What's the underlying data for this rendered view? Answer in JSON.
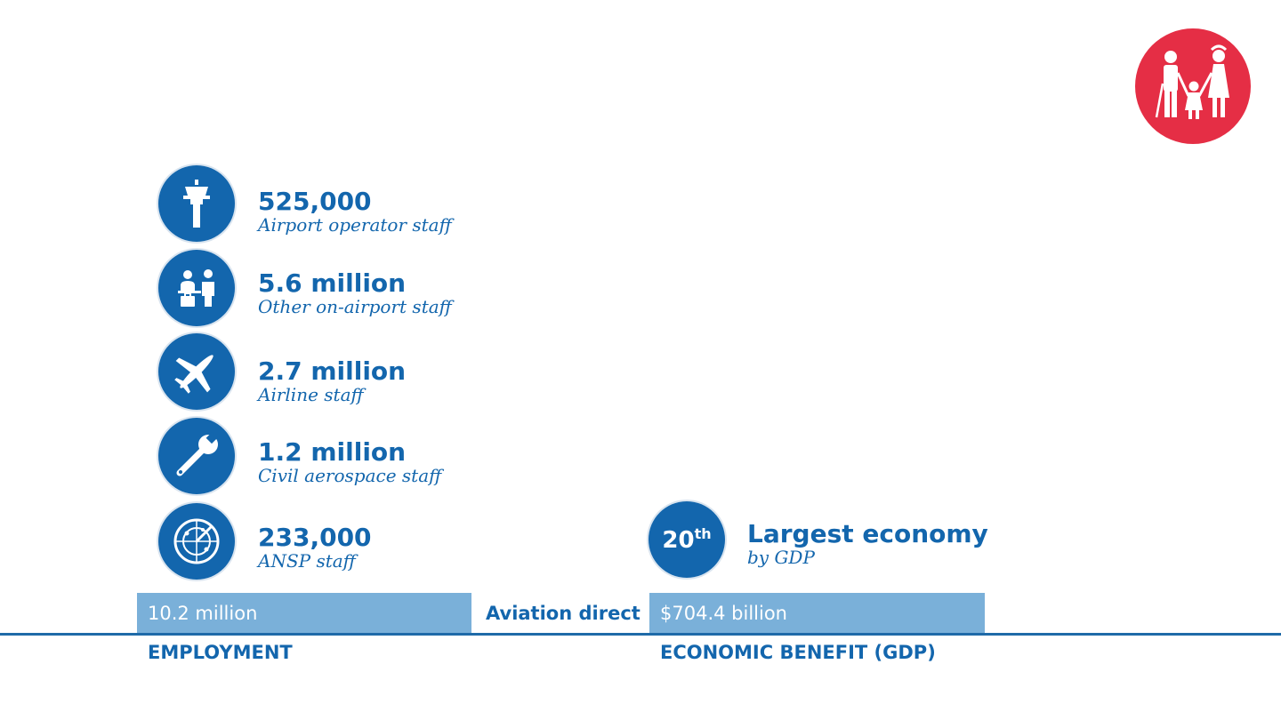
{
  "colors": {
    "primary": "#1366ad",
    "bar": "#7ab0d9",
    "badge": "#e52e45"
  },
  "badge_icon": "family-icon",
  "employment": {
    "items": [
      {
        "icon": "control-tower-icon",
        "value": "525,000",
        "label": "Airport operator staff"
      },
      {
        "icon": "check-in-desk-icon",
        "value": "5.6 million",
        "label": "Other on-airport staff"
      },
      {
        "icon": "airplane-icon",
        "value": "2.7 million",
        "label": "Airline staff"
      },
      {
        "icon": "wrench-icon",
        "value": "1.2 million",
        "label": "Civil aerospace staff"
      },
      {
        "icon": "radar-icon",
        "value": "233,000",
        "label": "ANSP staff"
      }
    ],
    "total": "10.2 million",
    "category": "EMPLOYMENT"
  },
  "middle_label": "Aviation direct",
  "gdp": {
    "rank_number": "20",
    "rank_suffix": "th",
    "rank_title": "Largest economy",
    "rank_sub": "by GDP",
    "total": "$704.4 billion",
    "category": "ECONOMIC BENEFIT (GDP)"
  },
  "chart_data": {
    "type": "bar",
    "categories": [
      "EMPLOYMENT",
      "ECONOMIC BENEFIT (GDP)"
    ],
    "series": [
      {
        "values": [
          10.2,
          704.4
        ]
      }
    ],
    "value_labels": [
      "10.2 million",
      "$704.4 billion"
    ],
    "annotation": "Aviation direct",
    "breakdown": [
      {
        "label": "Airport operator staff",
        "value": 525000
      },
      {
        "label": "Other on-airport staff",
        "value": 5600000
      },
      {
        "label": "Airline staff",
        "value": 2700000
      },
      {
        "label": "Civil aerospace staff",
        "value": 1200000
      },
      {
        "label": "ANSP staff",
        "value": 233000
      }
    ],
    "rank": {
      "value": 20,
      "label": "Largest economy by GDP"
    }
  }
}
